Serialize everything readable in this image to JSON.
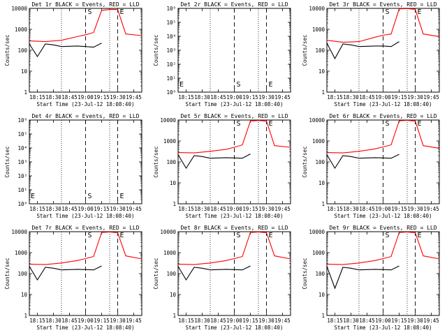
{
  "chart_data": [
    {
      "type": "line",
      "title": "Det 1r BLACK = Events, RED = LLD",
      "xlabel": "Start Time (23-Jul-12 18:08:40)",
      "ylabel": "Counts/sec",
      "yscale": "log",
      "ylim": [
        1,
        10000
      ],
      "xlim": [
        18.1,
        18.8
      ],
      "yticks": [
        "1",
        "10",
        "100",
        "1000",
        "10000"
      ],
      "xticks": [
        "18:15",
        "18:30",
        "18:45",
        "19:00",
        "19:15",
        "19:30",
        "19:45"
      ],
      "vlines_dotted": [
        18.3,
        18.6
      ],
      "vlines_dashed": [
        18.45,
        18.65
      ],
      "markers": [
        {
          "label": "S",
          "x": 18.45
        },
        {
          "label": "E",
          "x": 18.65
        }
      ],
      "series": [
        {
          "name": "LLD",
          "color": "#ff0000",
          "x": [
            18.1,
            18.2,
            18.3,
            18.4,
            18.45,
            18.5,
            18.55,
            18.6,
            18.65,
            18.7,
            18.8
          ],
          "y": [
            280,
            260,
            300,
            450,
            550,
            700,
            8000,
            9000,
            8800,
            600,
            500
          ]
        },
        {
          "name": "Events",
          "color": "#000000",
          "x": [
            18.1,
            18.15,
            18.2,
            18.25,
            18.3,
            18.4,
            18.45,
            18.5,
            18.55
          ],
          "y": [
            200,
            50,
            200,
            180,
            150,
            160,
            150,
            140,
            220
          ]
        }
      ]
    },
    {
      "type": "line",
      "title": "Det 2r BLACK = Events, RED = LLD",
      "xlabel": "Start Time (23-Jul-12 18:08:40)",
      "ylabel": "Counts/sec",
      "yscale": "log",
      "ylim": [
        1,
        1000000
      ],
      "xlim": [
        18.1,
        18.8
      ],
      "yticks": [
        "10⁰",
        "10¹",
        "10²",
        "10³",
        "10⁴",
        "10⁵",
        "10⁶"
      ],
      "xticks": [
        "18:15",
        "18:30",
        "18:45",
        "19:00",
        "19:15",
        "19:30",
        "19:45"
      ],
      "vlines_dotted": [
        18.3,
        18.6
      ],
      "vlines_dashed": [
        18.45,
        18.65
      ],
      "markers": [
        {
          "label": "E",
          "x": 18.1
        },
        {
          "label": "S",
          "x": 18.45
        },
        {
          "label": "E",
          "x": 18.65
        }
      ],
      "series": []
    },
    {
      "type": "line",
      "title": "Det 3r BLACK = Events, RED = LLD",
      "xlabel": "Start Time (23-Jul-12 18:08:40)",
      "ylabel": "Counts/sec",
      "yscale": "log",
      "ylim": [
        1,
        10000
      ],
      "xlim": [
        18.1,
        18.8
      ],
      "yticks": [
        "1",
        "10",
        "100",
        "1000",
        "10000"
      ],
      "xticks": [
        "18:15",
        "18:30",
        "18:45",
        "19:00",
        "19:15",
        "19:30",
        "19:45"
      ],
      "vlines_dotted": [
        18.3,
        18.6
      ],
      "vlines_dashed": [
        18.45,
        18.65
      ],
      "markers": [
        {
          "label": "S",
          "x": 18.45
        },
        {
          "label": "E",
          "x": 18.65
        }
      ],
      "series": [
        {
          "name": "LLD",
          "color": "#ff0000",
          "x": [
            18.1,
            18.2,
            18.3,
            18.4,
            18.45,
            18.5,
            18.55,
            18.6,
            18.65,
            18.7,
            18.8
          ],
          "y": [
            300,
            240,
            260,
            420,
            520,
            600,
            9500,
            9800,
            9000,
            600,
            450
          ]
        },
        {
          "name": "Events",
          "color": "#000000",
          "x": [
            18.1,
            18.15,
            18.2,
            18.25,
            18.3,
            18.4,
            18.45,
            18.5,
            18.55
          ],
          "y": [
            220,
            40,
            200,
            180,
            150,
            160,
            160,
            150,
            260
          ]
        }
      ]
    },
    {
      "type": "line",
      "title": "Det 4r BLACK = Events, RED = LLD",
      "xlabel": "Start Time (23-Jul-12 18:08:40)",
      "ylabel": "Counts/sec",
      "yscale": "log",
      "ylim": [
        1,
        1000000
      ],
      "xlim": [
        18.1,
        18.8
      ],
      "yticks": [
        "10⁰",
        "10¹",
        "10²",
        "10³",
        "10⁴",
        "10⁵",
        "10⁶"
      ],
      "xticks": [
        "18:15",
        "18:30",
        "18:45",
        "19:00",
        "19:15",
        "19:30",
        "19:45"
      ],
      "vlines_dotted": [
        18.3,
        18.6
      ],
      "vlines_dashed": [
        18.45,
        18.65
      ],
      "markers": [
        {
          "label": "E",
          "x": 18.1
        },
        {
          "label": "S",
          "x": 18.45
        },
        {
          "label": "E",
          "x": 18.65
        }
      ],
      "series": []
    },
    {
      "type": "line",
      "title": "Det 5r BLACK = Events, RED = LLD",
      "xlabel": "Start Time (23-Jul-12 18:08:40)",
      "ylabel": "Counts/sec",
      "yscale": "log",
      "ylim": [
        1,
        10000
      ],
      "xlim": [
        18.1,
        18.8
      ],
      "yticks": [
        "1",
        "10",
        "100",
        "1000",
        "10000"
      ],
      "xticks": [
        "18:15",
        "18:30",
        "18:45",
        "19:00",
        "19:15",
        "19:30",
        "19:45"
      ],
      "vlines_dotted": [
        18.3,
        18.6
      ],
      "vlines_dashed": [
        18.45,
        18.65
      ],
      "markers": [
        {
          "label": "S",
          "x": 18.45
        },
        {
          "label": "E",
          "x": 18.65
        }
      ],
      "series": [
        {
          "name": "LLD",
          "color": "#ff0000",
          "x": [
            18.1,
            18.2,
            18.3,
            18.4,
            18.45,
            18.5,
            18.55,
            18.6,
            18.65,
            18.7,
            18.8
          ],
          "y": [
            280,
            270,
            320,
            400,
            500,
            650,
            9000,
            9500,
            9000,
            600,
            500
          ]
        },
        {
          "name": "Events",
          "color": "#000000",
          "x": [
            18.1,
            18.15,
            18.2,
            18.25,
            18.3,
            18.4,
            18.45,
            18.5,
            18.55
          ],
          "y": [
            220,
            50,
            200,
            180,
            150,
            160,
            155,
            150,
            240
          ]
        }
      ]
    },
    {
      "type": "line",
      "title": "Det 6r BLACK = Events, RED = LLD",
      "xlabel": "Start Time (23-Jul-12 18:08:40)",
      "ylabel": "Counts/sec",
      "yscale": "log",
      "ylim": [
        1,
        10000
      ],
      "xlim": [
        18.1,
        18.8
      ],
      "yticks": [
        "1",
        "10",
        "100",
        "1000",
        "10000"
      ],
      "xticks": [
        "18:15",
        "18:30",
        "18:45",
        "19:00",
        "19:15",
        "19:30",
        "19:45"
      ],
      "vlines_dotted": [
        18.3,
        18.6
      ],
      "vlines_dashed": [
        18.45,
        18.65
      ],
      "markers": [
        {
          "label": "S",
          "x": 18.45
        },
        {
          "label": "E",
          "x": 18.65
        }
      ],
      "series": [
        {
          "name": "LLD",
          "color": "#ff0000",
          "x": [
            18.1,
            18.2,
            18.3,
            18.4,
            18.45,
            18.5,
            18.55,
            18.6,
            18.65,
            18.7,
            18.8
          ],
          "y": [
            280,
            270,
            320,
            420,
            520,
            650,
            9200,
            9600,
            9000,
            600,
            450
          ]
        },
        {
          "name": "Events",
          "color": "#000000",
          "x": [
            18.1,
            18.15,
            18.2,
            18.25,
            18.3,
            18.4,
            18.45,
            18.5,
            18.55
          ],
          "y": [
            220,
            50,
            200,
            180,
            150,
            160,
            155,
            150,
            230
          ]
        }
      ]
    },
    {
      "type": "line",
      "title": "Det 7r BLACK = Events, RED = LLD",
      "xlabel": "Start Time (23-Jul-12 18:08:40)",
      "ylabel": "Counts/sec",
      "yscale": "log",
      "ylim": [
        1,
        10000
      ],
      "xlim": [
        18.1,
        18.8
      ],
      "yticks": [
        "1",
        "10",
        "100",
        "1000",
        "10000"
      ],
      "xticks": [
        "18:15",
        "18:30",
        "18:45",
        "19:00",
        "19:15",
        "19:30",
        "19:45"
      ],
      "vlines_dotted": [
        18.3,
        18.6
      ],
      "vlines_dashed": [
        18.45,
        18.65
      ],
      "markers": [
        {
          "label": "S",
          "x": 18.45
        },
        {
          "label": "E",
          "x": 18.65
        }
      ],
      "series": [
        {
          "name": "LLD",
          "color": "#ff0000",
          "x": [
            18.1,
            18.2,
            18.3,
            18.4,
            18.45,
            18.5,
            18.55,
            18.6,
            18.65,
            18.7,
            18.8
          ],
          "y": [
            280,
            270,
            320,
            420,
            520,
            650,
            9200,
            9600,
            9000,
            700,
            500
          ]
        },
        {
          "name": "Events",
          "color": "#000000",
          "x": [
            18.1,
            18.15,
            18.2,
            18.25,
            18.3,
            18.4,
            18.45,
            18.5,
            18.55
          ],
          "y": [
            220,
            50,
            200,
            180,
            150,
            160,
            155,
            150,
            230
          ]
        }
      ]
    },
    {
      "type": "line",
      "title": "Det 8r BLACK = Events, RED = LLD",
      "xlabel": "Start Time (23-Jul-12 18:08:40)",
      "ylabel": "Counts/sec",
      "yscale": "log",
      "ylim": [
        1,
        10000
      ],
      "xlim": [
        18.1,
        18.8
      ],
      "yticks": [
        "1",
        "10",
        "100",
        "1000",
        "10000"
      ],
      "xticks": [
        "18:15",
        "18:30",
        "18:45",
        "19:00",
        "19:15",
        "19:30",
        "19:45"
      ],
      "vlines_dotted": [
        18.3,
        18.6
      ],
      "vlines_dashed": [
        18.45,
        18.65
      ],
      "markers": [
        {
          "label": "S",
          "x": 18.45
        },
        {
          "label": "E",
          "x": 18.65
        }
      ],
      "series": [
        {
          "name": "LLD",
          "color": "#ff0000",
          "x": [
            18.1,
            18.2,
            18.3,
            18.4,
            18.45,
            18.5,
            18.55,
            18.6,
            18.65,
            18.7,
            18.8
          ],
          "y": [
            280,
            270,
            320,
            420,
            520,
            650,
            9200,
            9600,
            9000,
            700,
            500
          ]
        },
        {
          "name": "Events",
          "color": "#000000",
          "x": [
            18.1,
            18.15,
            18.2,
            18.25,
            18.3,
            18.4,
            18.45,
            18.5,
            18.55
          ],
          "y": [
            220,
            50,
            200,
            180,
            150,
            160,
            155,
            150,
            230
          ]
        }
      ]
    },
    {
      "type": "line",
      "title": "Det 9r BLACK = Events, RED = LLD",
      "xlabel": "Start Time (23-Jul-12 18:08:40)",
      "ylabel": "Counts/sec",
      "yscale": "log",
      "ylim": [
        1,
        10000
      ],
      "xlim": [
        18.1,
        18.8
      ],
      "yticks": [
        "1",
        "10",
        "100",
        "1000",
        "10000"
      ],
      "xticks": [
        "18:15",
        "18:30",
        "18:45",
        "19:00",
        "19:15",
        "19:30",
        "19:45"
      ],
      "vlines_dotted": [
        18.3,
        18.6
      ],
      "vlines_dashed": [
        18.45,
        18.65
      ],
      "markers": [
        {
          "label": "S",
          "x": 18.45
        },
        {
          "label": "E",
          "x": 18.65
        }
      ],
      "series": [
        {
          "name": "LLD",
          "color": "#ff0000",
          "x": [
            18.1,
            18.2,
            18.3,
            18.4,
            18.45,
            18.5,
            18.55,
            18.6,
            18.65,
            18.7,
            18.8
          ],
          "y": [
            280,
            270,
            320,
            420,
            520,
            650,
            9200,
            9600,
            9000,
            700,
            500
          ]
        },
        {
          "name": "Events",
          "color": "#000000",
          "x": [
            18.1,
            18.15,
            18.2,
            18.25,
            18.3,
            18.4,
            18.45,
            18.5,
            18.55
          ],
          "y": [
            220,
            20,
            200,
            180,
            150,
            160,
            155,
            150,
            230
          ]
        }
      ]
    }
  ]
}
